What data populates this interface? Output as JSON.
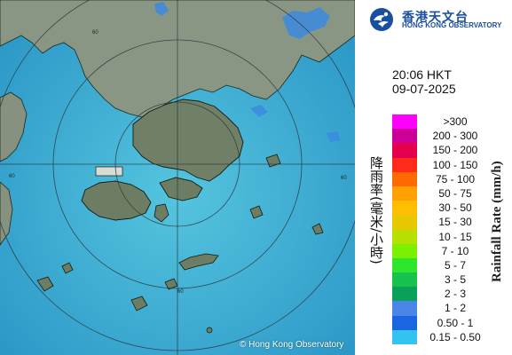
{
  "header": {
    "org_name_zh": "香港天文台",
    "org_name_en": "HONG KONG OBSERVATORY"
  },
  "timestamp": {
    "time": "20:06 HKT",
    "date": "09-07-2025"
  },
  "legend": {
    "title_zh": "降雨率(毫米/小時)",
    "title_en": "Rainfall Rate (mm/h)",
    "items": [
      {
        "label": ">300",
        "color": "#ff00ff"
      },
      {
        "label": "200 - 300",
        "color": "#cc0099"
      },
      {
        "label": "150 - 200",
        "color": "#e5004d"
      },
      {
        "label": "100 - 150",
        "color": "#ff2a1a"
      },
      {
        "label": "75 - 100",
        "color": "#ff6a00"
      },
      {
        "label": "50 - 75",
        "color": "#ff9f00"
      },
      {
        "label": "30 - 50",
        "color": "#ffbf00"
      },
      {
        "label": "15 - 30",
        "color": "#e6c700"
      },
      {
        "label": "10 - 15",
        "color": "#b7e000"
      },
      {
        "label": "7 - 10",
        "color": "#7cf000"
      },
      {
        "label": "5 - 7",
        "color": "#2ee62e"
      },
      {
        "label": "3 - 5",
        "color": "#18c24f"
      },
      {
        "label": "2 - 3",
        "color": "#0aa05a"
      },
      {
        "label": "1 - 2",
        "color": "#4a86e8"
      },
      {
        "label": "0.50 - 1",
        "color": "#1a66e0"
      },
      {
        "label": "0.15 - 0.50",
        "color": "#33c3f0"
      }
    ]
  },
  "map": {
    "ring_labels": [
      "60",
      "60",
      "60",
      "60"
    ],
    "credit": "© Hong Kong Observatory",
    "colors": {
      "sea": "#3fa9d4",
      "sea_light": "#54c3e0",
      "land": "#8e9a86",
      "rain_light": "#2f8ce6"
    }
  }
}
